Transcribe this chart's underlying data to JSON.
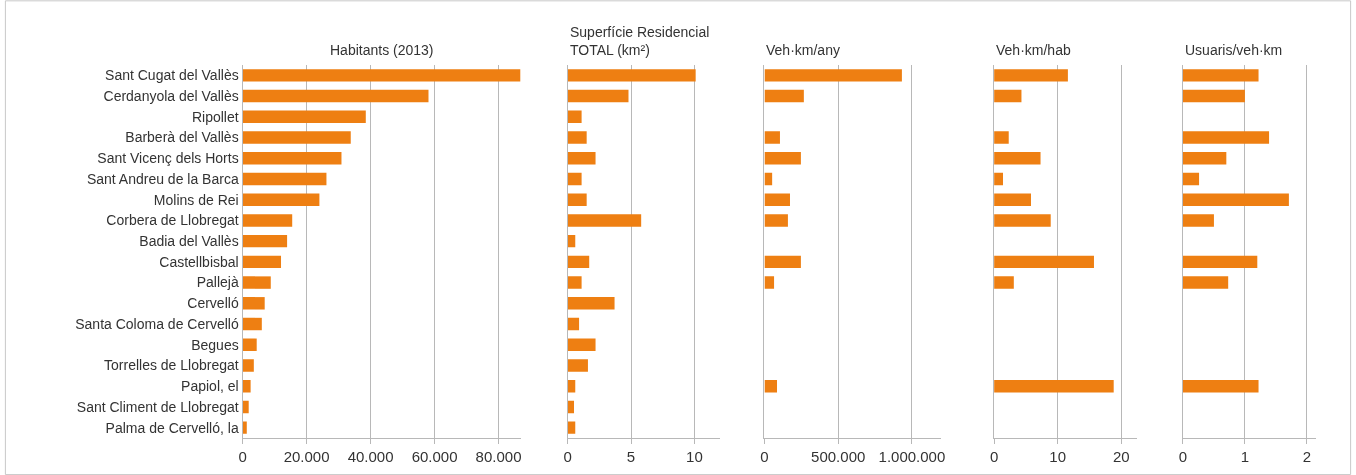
{
  "chart_data": [
    {
      "type": "bar",
      "orientation": "horizontal",
      "title": "Habitants (2013)",
      "categories": [
        "Sant Cugat del Vallès",
        "Cerdanyola del Vallès",
        "Ripollet",
        "Barberà del Vallès",
        "Sant Vicenç dels Horts",
        "Sant Andreu de la Barca",
        "Molins de Rei",
        "Corbera de Llobregat",
        "Badia del Vallès",
        "Castellbisbal",
        "Pallejà",
        "Cervelló",
        "Santa Coloma de Cervelló",
        "Begues",
        "Torrelles de Llobregat",
        "Papiol, el",
        "Sant Climent de Llobregat",
        "Palma de Cervelló, la"
      ],
      "values": [
        86800,
        58100,
        38500,
        33800,
        30900,
        26200,
        24000,
        15500,
        13900,
        12000,
        8800,
        6900,
        6000,
        4400,
        3500,
        2500,
        1900,
        1300
      ],
      "color": "#ee7f12",
      "xlim": [
        0,
        87000
      ],
      "xticks": [
        0,
        {
          "value": 20000,
          "label": "20.000"
        },
        {
          "value": 40000,
          "label": "40.000"
        },
        {
          "value": 60000,
          "label": "60.000"
        },
        {
          "value": 80000,
          "label": "80.000"
        }
      ],
      "grid": "x"
    },
    {
      "type": "bar",
      "orientation": "horizontal",
      "title": "Superfície Residencial TOTAL (km²)",
      "categories": [
        "Sant Cugat del Vallès",
        "Cerdanyola del Vallès",
        "Ripollet",
        "Barberà del Vallès",
        "Sant Vicenç dels Horts",
        "Sant Andreu de la Barca",
        "Molins de Rei",
        "Corbera de Llobregat",
        "Badia del Vallès",
        "Castellbisbal",
        "Pallejà",
        "Cervelló",
        "Santa Coloma de Cervelló",
        "Begues",
        "Torrelles de Llobregat",
        "Papiol, el",
        "Sant Climent de Llobregat",
        "Palma de Cervelló, la"
      ],
      "values": [
        10.1,
        4.8,
        1.1,
        1.5,
        2.2,
        1.1,
        1.5,
        5.8,
        0.6,
        1.7,
        1.1,
        3.7,
        0.9,
        2.2,
        1.6,
        0.6,
        0.5,
        0.6
      ],
      "color": "#ee7f12",
      "xlim": [
        0,
        12
      ],
      "xticks": [
        0,
        5,
        10
      ],
      "grid": "x",
      "tick_labels": "x"
    },
    {
      "type": "bar",
      "orientation": "horizontal",
      "title": "Veh·km/any",
      "categories": [
        "Sant Cugat del Vallès",
        "Cerdanyola del Vallès",
        "Ripollet",
        "Barberà del Vallès",
        "Sant Vicenç dels Horts",
        "Sant Andreu de la Barca",
        "Molins de Rei",
        "Corbera de Llobregat",
        "Badia del Vallès",
        "Castellbisbal",
        "Pallejà",
        "Cervelló",
        "Santa Coloma de Cervelló",
        "Begues",
        "Torrelles de Llobregat",
        "Papiol, el",
        "Sant Climent de Llobregat",
        "Palma de Cervelló, la"
      ],
      "values": [
        932000,
        267000,
        null,
        105000,
        247000,
        52000,
        173000,
        159000,
        null,
        247000,
        65000,
        null,
        null,
        null,
        null,
        85000,
        null,
        null
      ],
      "color": "#ee7f12",
      "xlim": [
        0,
        1200000
      ],
      "xticks": [
        0,
        {
          "value": 500000,
          "label": "500.000"
        },
        {
          "value": 1000000,
          "label": "1.000.000"
        }
      ],
      "grid": "x",
      "tick_labels": "x"
    },
    {
      "type": "bar",
      "orientation": "horizontal",
      "title": "Veh·km/hab",
      "categories": [
        "Sant Cugat del Vallès",
        "Cerdanyola del Vallès",
        "Ripollet",
        "Barberà del Vallès",
        "Sant Vicenç dels Horts",
        "Sant Andreu de la Barca",
        "Molins de Rei",
        "Corbera de Llobregat",
        "Badia del Vallès",
        "Castellbisbal",
        "Pallejà",
        "Cervelló",
        "Santa Coloma de Cervelló",
        "Begues",
        "Torrelles de Llobregat",
        "Papiol, el",
        "Sant Climent de Llobregat",
        "Palma de Cervelló, la"
      ],
      "values": [
        11.6,
        4.3,
        null,
        2.3,
        7.3,
        1.4,
        5.8,
        8.9,
        null,
        15.7,
        3.1,
        null,
        null,
        null,
        null,
        18.8,
        null,
        null
      ],
      "color": "#ee7f12",
      "xlim": [
        0,
        22.5
      ],
      "xticks": [
        0,
        10,
        20
      ],
      "grid": "x",
      "tick_labels": "x"
    },
    {
      "type": "bar",
      "orientation": "horizontal",
      "title": "Usuaris/veh·km",
      "categories": [
        "Sant Cugat del Vallès",
        "Cerdanyola del Vallès",
        "Ripollet",
        "Barberà del Vallès",
        "Sant Vicenç dels Horts",
        "Sant Andreu de la Barca",
        "Molins de Rei",
        "Corbera de Llobregat",
        "Badia del Vallès",
        "Castellbisbal",
        "Pallejà",
        "Cervelló",
        "Santa Coloma de Cervelló",
        "Begues",
        "Torrelles de Llobregat",
        "Papiol, el",
        "Sant Climent de Llobregat",
        "Palma de Cervelló, la"
      ],
      "values": [
        1.22,
        1.0,
        null,
        1.39,
        0.7,
        0.26,
        1.71,
        0.5,
        null,
        1.2,
        0.73,
        null,
        null,
        null,
        null,
        1.22,
        null,
        null
      ],
      "color": "#ee7f12",
      "xlim": [
        0,
        2.15
      ],
      "xticks": [
        0,
        1,
        2
      ],
      "grid": "x",
      "tick_labels": "x"
    }
  ]
}
